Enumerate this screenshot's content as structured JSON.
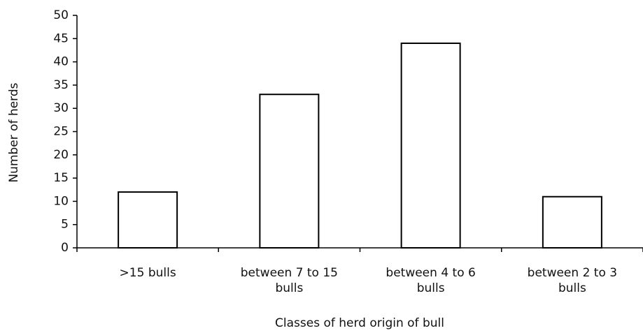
{
  "chart_data": {
    "type": "bar",
    "x_label": "Classes of herd origin of bull",
    "y_label": "Number of herds",
    "categories": [
      ">15 bulls",
      "between 7 to 15 bulls",
      "between 4 to 6 bulls",
      "between 2 to 3 bulls"
    ],
    "values": [
      12,
      33,
      44,
      11
    ],
    "color": "#ffffff",
    "ylim": [
      0,
      50
    ],
    "yticks": [
      0,
      5,
      10,
      15,
      20,
      25,
      30,
      35,
      40,
      45,
      50
    ],
    "grid": false
  }
}
